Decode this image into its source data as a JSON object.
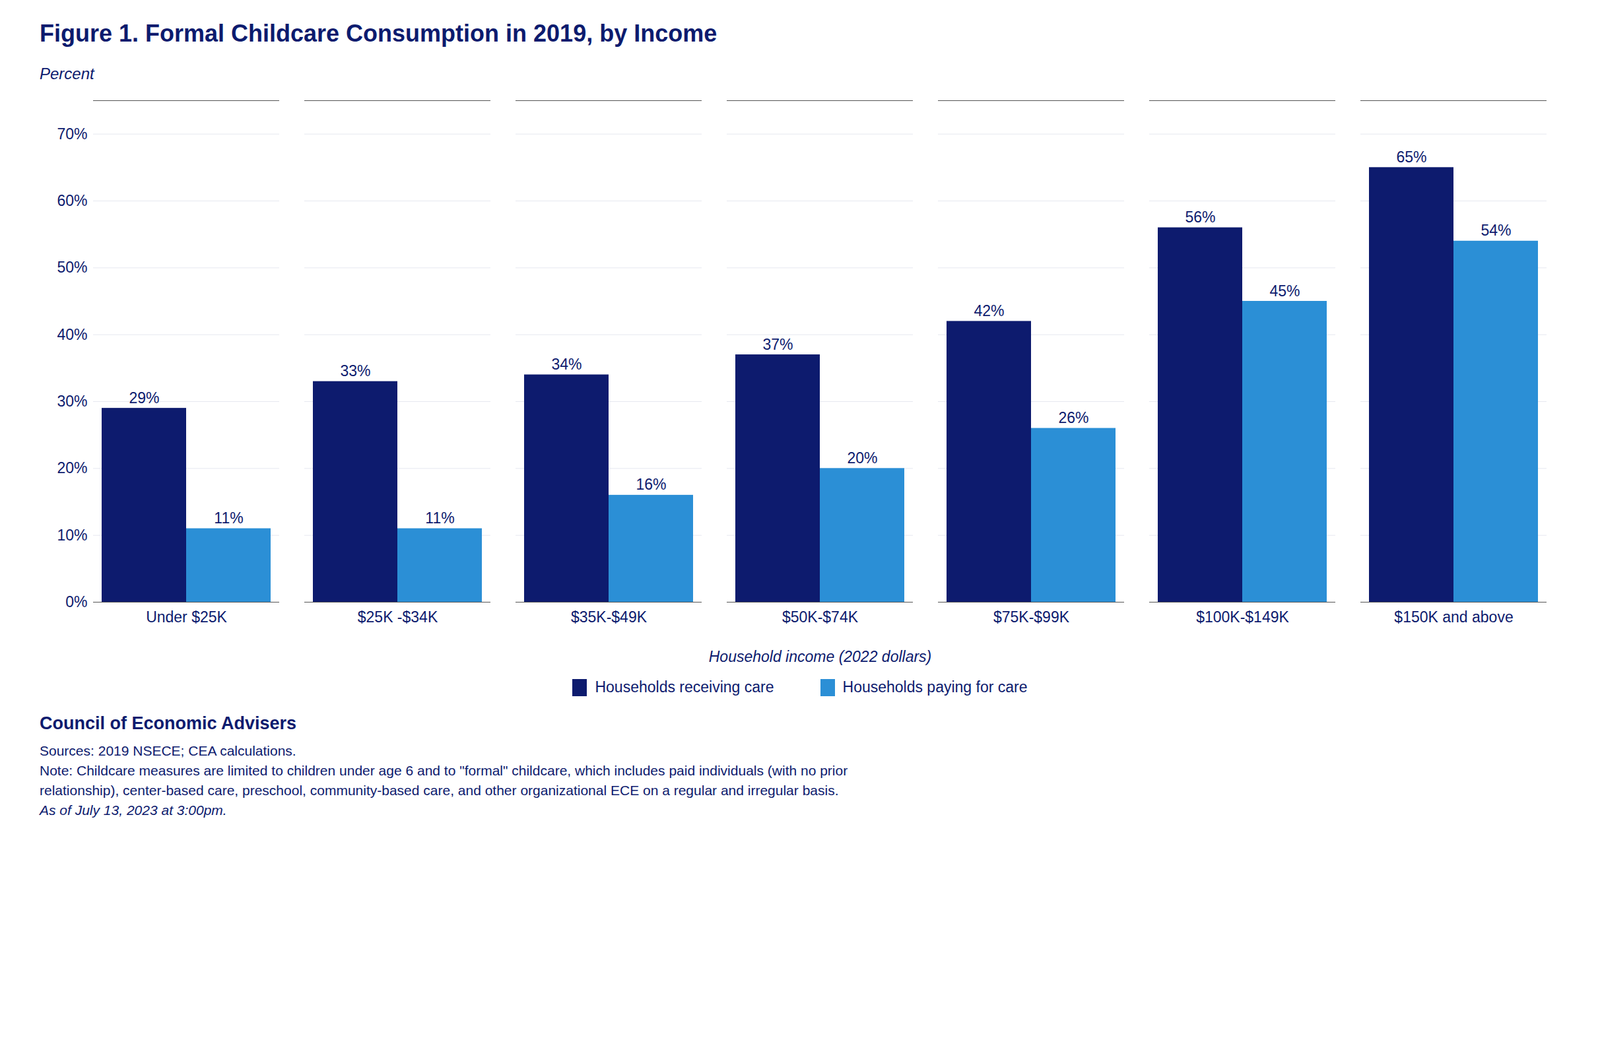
{
  "chart_data": {
    "type": "bar",
    "title": "Figure 1. Formal Childcare Consumption in 2019, by Income",
    "ylabel": "Percent",
    "xlabel": "Household income (2022 dollars)",
    "categories": [
      "Under $25K",
      "$25K -$34K",
      "$35K-$49K",
      "$50K-$74K",
      "$75K-$99K",
      "$100K-$149K",
      "$150K and above"
    ],
    "series": [
      {
        "name": "Households receiving care",
        "color": "#0d1b6e",
        "values": [
          29,
          33,
          34,
          37,
          42,
          56,
          65
        ],
        "value_labels": [
          "29%",
          "33%",
          "34%",
          "37%",
          "42%",
          "56%",
          "65%"
        ]
      },
      {
        "name": "Households paying for care",
        "color": "#2b8fd6",
        "values": [
          11,
          11,
          16,
          20,
          26,
          45,
          54
        ],
        "value_labels": [
          "11%",
          "11%",
          "16%",
          "20%",
          "26%",
          "45%",
          "54%"
        ]
      }
    ],
    "ylim": [
      0,
      75
    ],
    "yticks": [
      {
        "value": 0,
        "label": "0%"
      },
      {
        "value": 10,
        "label": "10%"
      },
      {
        "value": 20,
        "label": "20%"
      },
      {
        "value": 30,
        "label": "30%"
      },
      {
        "value": 40,
        "label": "40%"
      },
      {
        "value": 50,
        "label": "50%"
      },
      {
        "value": 60,
        "label": "60%"
      },
      {
        "value": 70,
        "label": "70%"
      }
    ],
    "grid": true,
    "legend": "bottom",
    "data_labels": true,
    "annotations": [
      "Council of Economic Advisers",
      "Sources: 2019 NSECE; CEA calculations.",
      "Note: Childcare measures are limited to children under age 6 and to \"formal\" childcare, which includes paid individuals (with no prior",
      "relationship), center-based care, preschool, community-based care, and other organizational ECE on a regular and irregular basis.",
      "As of July 13, 2023 at 3:00pm."
    ]
  }
}
